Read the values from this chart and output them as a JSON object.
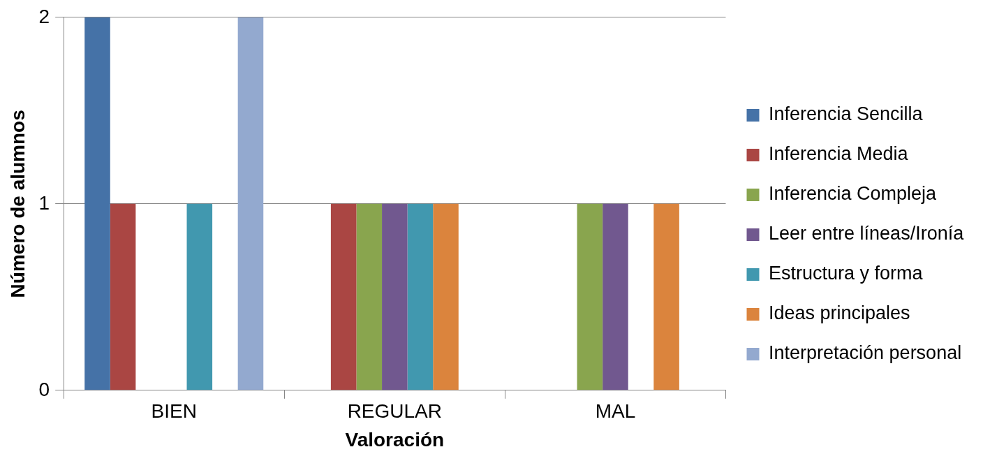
{
  "chart_data": {
    "type": "bar",
    "xlabel": "Valoración",
    "ylabel": "Número de alumnos",
    "categories": [
      "BIEN",
      "REGULAR",
      "MAL"
    ],
    "series": [
      {
        "name": "Inferencia Sencilla",
        "color": "#4572a7",
        "values": [
          2,
          0,
          0
        ]
      },
      {
        "name": "Inferencia Media",
        "color": "#aa4643",
        "values": [
          1,
          1,
          0
        ]
      },
      {
        "name": "Inferencia Compleja",
        "color": "#89a54e",
        "values": [
          0,
          1,
          1
        ]
      },
      {
        "name": "Leer entre líneas/Ironía",
        "color": "#71588f",
        "values": [
          0,
          1,
          1
        ]
      },
      {
        "name": "Estructura y forma",
        "color": "#4198af",
        "values": [
          1,
          1,
          0
        ]
      },
      {
        "name": "Ideas principales",
        "color": "#db843d",
        "values": [
          0,
          1,
          1
        ]
      },
      {
        "name": "Interpretación personal",
        "color": "#93a9cf",
        "values": [
          2,
          0,
          0
        ]
      }
    ],
    "ylim": [
      0,
      2
    ],
    "yticks": [
      0,
      1,
      2
    ],
    "grid": "y",
    "legend": "right"
  }
}
